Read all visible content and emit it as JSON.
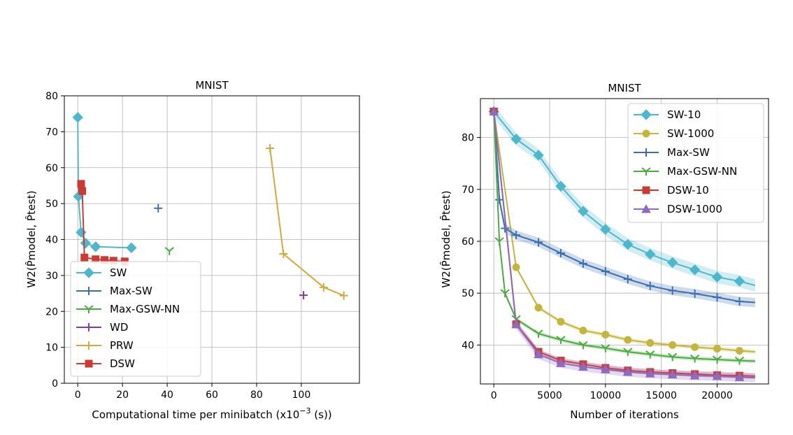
{
  "chart_data": [
    {
      "type": "line",
      "title": "MNIST",
      "xlabel": "Computational time per minibatch (x10",
      "xlabel_exp": "−3",
      "xlabel_unit": " (s))",
      "ylabel": "W2(P̂model, P̂test)",
      "xlim": [
        -6,
        126
      ],
      "ylim": [
        0,
        80
      ],
      "xticks": [
        0,
        20,
        40,
        60,
        80,
        100
      ],
      "yticks": [
        0,
        10,
        20,
        30,
        40,
        50,
        60,
        70,
        80
      ],
      "legend_position": "lower-left",
      "series": [
        {
          "name": "SW",
          "color": "#4db8cc",
          "marker": "diamond",
          "points": [
            [
              0,
              74
            ],
            [
              0.3,
              52
            ],
            [
              1.5,
              42
            ],
            [
              3.5,
              39
            ],
            [
              8,
              38
            ],
            [
              24,
              37.7
            ]
          ]
        },
        {
          "name": "Max-SW",
          "color": "#3b6fb0",
          "marker": "plus",
          "points": [
            [
              36,
              48.7
            ]
          ]
        },
        {
          "name": "Max-GSW-NN",
          "color": "#4aab3f",
          "marker": "tri_down",
          "points": [
            [
              41,
              36.8
            ]
          ]
        },
        {
          "name": "WD",
          "color": "#7d3f98",
          "marker": "plus",
          "points": [
            [
              101,
              24.5
            ]
          ]
        },
        {
          "name": "PRW",
          "color": "#d4a93c",
          "marker": "plus",
          "points": [
            [
              86,
              65.4
            ],
            [
              92,
              36
            ],
            [
              110,
              26.7
            ],
            [
              119,
              24.4
            ]
          ]
        },
        {
          "name": "DSW",
          "color": "#cc3a33",
          "marker": "square",
          "points": [
            [
              1.5,
              55.5
            ],
            [
              2,
              53.5
            ],
            [
              3,
              35
            ],
            [
              8,
              34.5
            ],
            [
              12,
              34.3
            ],
            [
              16,
              34.1
            ],
            [
              21,
              33.9
            ]
          ]
        }
      ]
    },
    {
      "type": "line",
      "title": "MNIST",
      "xlabel": "Number of iterations",
      "ylabel": "W2(P̂model, P̂test)",
      "xlim": [
        -1200,
        24600
      ],
      "ylim": [
        32.5,
        87.5
      ],
      "xticks": [
        0,
        5000,
        10000,
        15000,
        20000
      ],
      "yticks": [
        40,
        50,
        60,
        70,
        80
      ],
      "legend_position": "top-right",
      "series": [
        {
          "name": "SW-10",
          "color": "#4db8cc",
          "marker": "diamond",
          "x": [
            0,
            2000,
            4000,
            6000,
            8000,
            10000,
            12000,
            14000,
            16000,
            18000,
            20000,
            22000,
            23400
          ],
          "values": [
            85,
            79.7,
            76.6,
            70.6,
            65.8,
            62.3,
            59.4,
            57.5,
            55.9,
            54.5,
            53.1,
            52.3,
            51.5
          ]
        },
        {
          "name": "SW-1000",
          "color": "#c4b63d",
          "marker": "circle",
          "x": [
            0,
            2000,
            4000,
            6000,
            8000,
            10000,
            12000,
            14000,
            16000,
            18000,
            20000,
            22000,
            23400
          ],
          "values": [
            85,
            55,
            47.2,
            44.5,
            42.8,
            42.0,
            41.0,
            40.4,
            40.0,
            39.6,
            39.3,
            38.9,
            38.7
          ]
        },
        {
          "name": "Max-SW",
          "color": "#3b6fb0",
          "marker": "plus",
          "x": [
            0,
            500,
            1000,
            2000,
            4000,
            6000,
            8000,
            10000,
            12000,
            14000,
            16000,
            18000,
            20000,
            22000,
            23400
          ],
          "values": [
            85,
            68,
            62.5,
            61.2,
            59.8,
            57.7,
            55.7,
            54.2,
            52.7,
            51.4,
            50.5,
            49.9,
            49.2,
            48.4,
            48.2
          ]
        },
        {
          "name": "Max-GSW-NN",
          "color": "#4aab3f",
          "marker": "tri_down",
          "x": [
            0,
            500,
            1000,
            2000,
            4000,
            6000,
            8000,
            10000,
            12000,
            14000,
            16000,
            18000,
            20000,
            22000,
            23400
          ],
          "values": [
            85,
            60,
            50,
            45,
            42.2,
            41.0,
            40.0,
            39.4,
            38.7,
            38.2,
            37.7,
            37.4,
            37.2,
            37.0,
            36.9
          ]
        },
        {
          "name": "DSW-10",
          "color": "#cc3a33",
          "marker": "square",
          "x": [
            0,
            2000,
            4000,
            6000,
            8000,
            10000,
            12000,
            14000,
            16000,
            18000,
            20000,
            22000,
            23400
          ],
          "values": [
            85,
            44,
            38.7,
            37.0,
            36.3,
            35.6,
            35.1,
            34.8,
            34.6,
            34.4,
            34.2,
            34.1,
            34.0
          ]
        },
        {
          "name": "DSW-1000",
          "color": "#8e6bbf",
          "marker": "triangle",
          "x": [
            0,
            2000,
            4000,
            6000,
            8000,
            10000,
            12000,
            14000,
            16000,
            18000,
            20000,
            22000,
            23400
          ],
          "values": [
            85,
            44,
            38.2,
            36.5,
            35.8,
            35.3,
            34.8,
            34.5,
            34.3,
            34.1,
            34.0,
            33.8,
            33.7
          ]
        }
      ]
    }
  ]
}
